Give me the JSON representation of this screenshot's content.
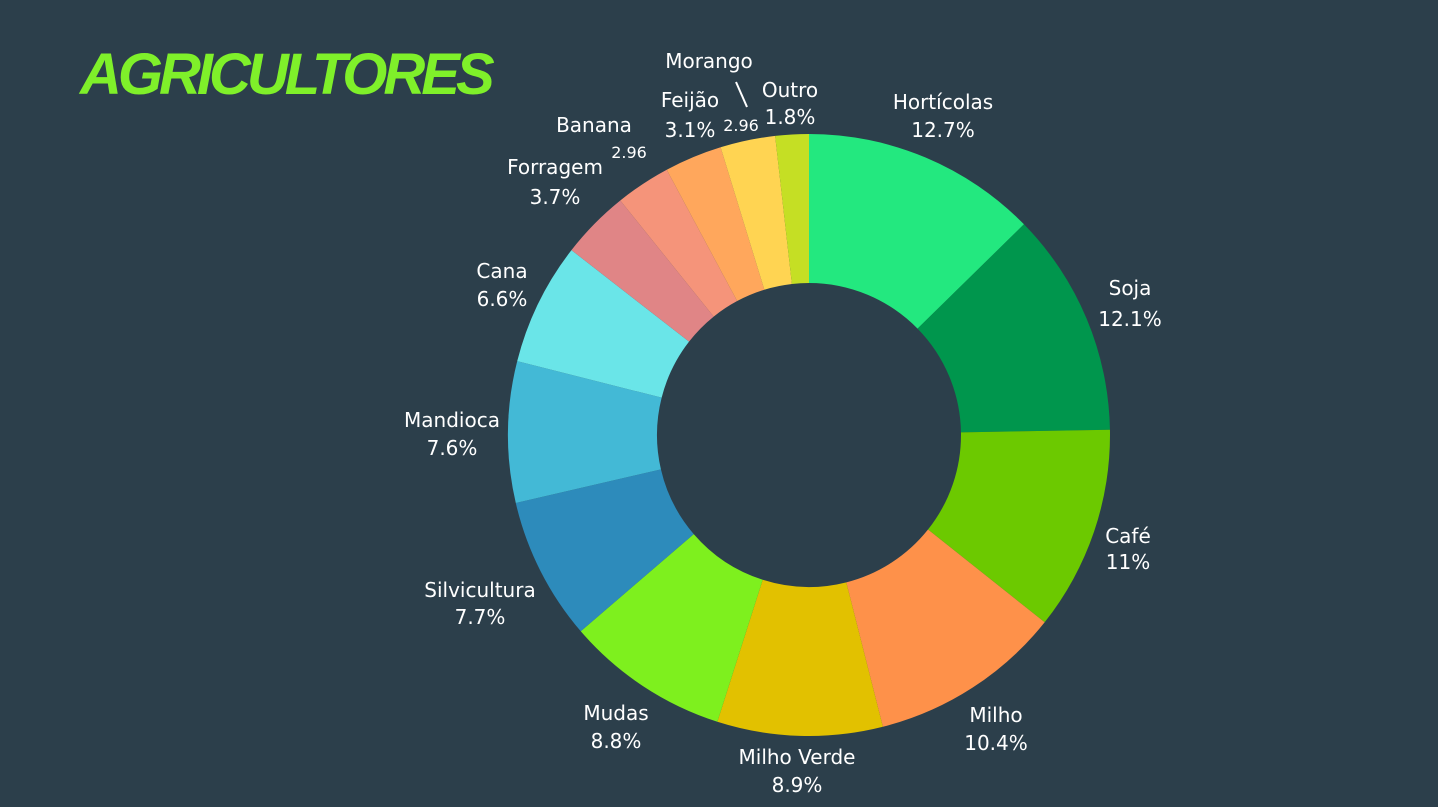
{
  "page": {
    "title": "AGRICULTORES",
    "title_color": "#7ff02a",
    "background": "#2c3f4b"
  },
  "chart_data": {
    "type": "pie",
    "subtype": "donut",
    "title": "AGRICULTORES",
    "sort": "descending-clockwise-from-top",
    "slices": [
      {
        "label": "Hortícolas",
        "value": 12.7,
        "display": "12.7%",
        "color": "#23e87f"
      },
      {
        "label": "Soja",
        "value": 12.1,
        "display": "12.1%",
        "color": "#00964d"
      },
      {
        "label": "Café",
        "value": 11,
        "display": "11%",
        "color": "#6cc900"
      },
      {
        "label": "Milho",
        "value": 10.4,
        "display": "10.4%",
        "color": "#fe914a"
      },
      {
        "label": "Milho Verde",
        "value": 8.9,
        "display": "8.9%",
        "color": "#e2c100"
      },
      {
        "label": "Mudas",
        "value": 8.8,
        "display": "8.8%",
        "color": "#7ef01e"
      },
      {
        "label": "Silvicultura",
        "value": 7.7,
        "display": "7.7%",
        "color": "#2d8bbb"
      },
      {
        "label": "Mandioca",
        "value": 7.6,
        "display": "7.6%",
        "color": "#43b9d6"
      },
      {
        "label": "Cana",
        "value": 6.6,
        "display": "6.6%",
        "color": "#6ae5e8"
      },
      {
        "label": "Forragem",
        "value": 3.7,
        "display": "3.7%",
        "color": "#e08586"
      },
      {
        "label": "Banana",
        "value": 2.96,
        "display": "2.96",
        "color": "#f5947a"
      },
      {
        "label": "Feijão",
        "value": 3.1,
        "display": "3.1%",
        "color": "#ffa75c"
      },
      {
        "label": "Morango",
        "value": 2.96,
        "display": "2.96",
        "color": "#ffd452"
      },
      {
        "label": "Outro",
        "value": 1.8,
        "display": "1.8%",
        "color": "#c5df24"
      }
    ]
  }
}
